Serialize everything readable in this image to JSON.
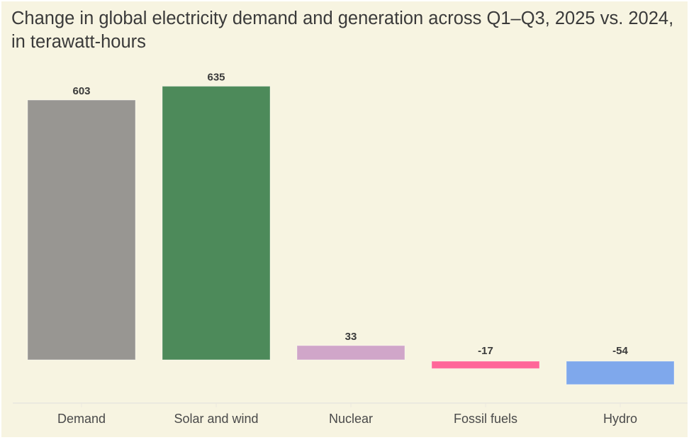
{
  "chart_data": {
    "type": "bar",
    "title": "Change in global electricity demand and generation across Q1–Q3, 2025 vs. 2024, in terawatt-hours",
    "xlabel": "",
    "ylabel": "",
    "categories": [
      "Demand",
      "Solar and wind",
      "Nuclear",
      "Fossil fuels",
      "Hydro"
    ],
    "values": [
      603,
      635,
      33,
      -17,
      -54
    ],
    "data_labels": [
      "603",
      "635",
      "33",
      "-17",
      "-54"
    ],
    "colors": [
      "#989692",
      "#4d8a5a",
      "#d0a6c9",
      "#ff6699",
      "#7fa8ec"
    ],
    "ylim": [
      -54,
      635
    ],
    "grid": false,
    "legend": "none"
  }
}
